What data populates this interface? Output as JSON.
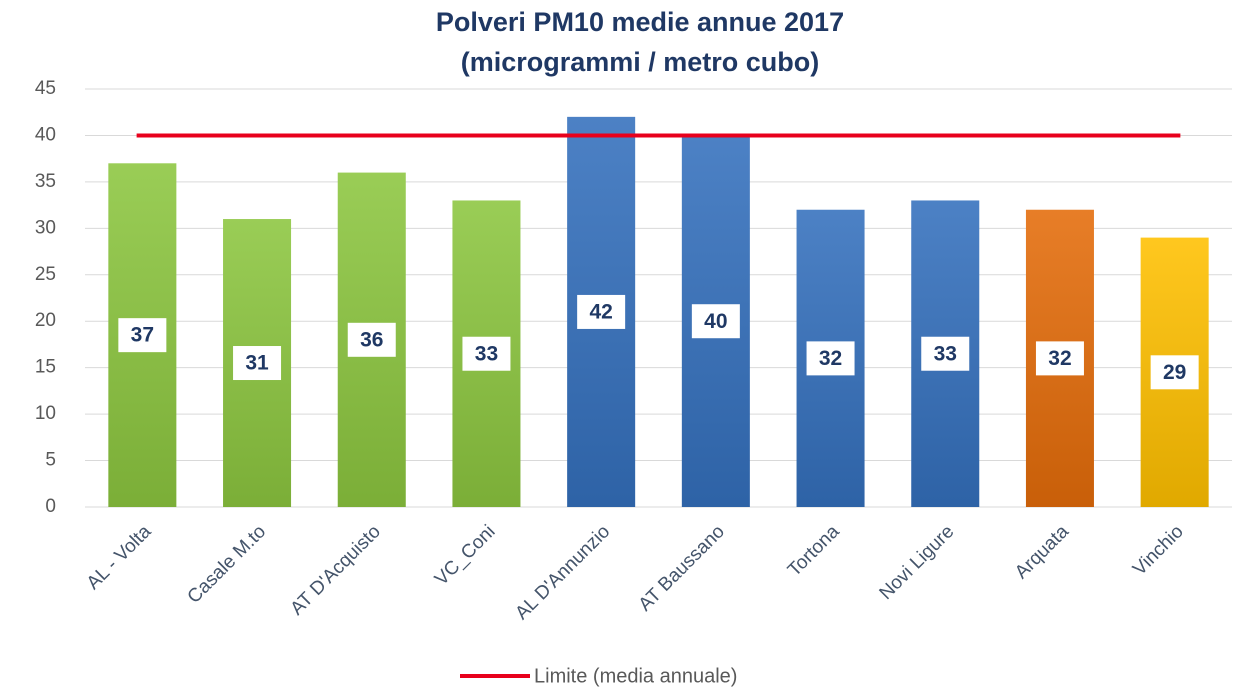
{
  "chart_data": {
    "type": "bar",
    "title": [
      "Polveri PM10 medie annue 2017",
      "(microgrammi / metro cubo)"
    ],
    "categories": [
      "AL - Volta",
      "Casale M.to",
      "AT D'Acquisto",
      "VC_Coni",
      "AL D'Annunzio",
      "AT Baussano",
      "Tortona",
      "Novi Ligure",
      "Arquata",
      "Vinchio"
    ],
    "values": [
      37,
      31,
      36,
      33,
      42,
      40,
      32,
      33,
      32,
      29
    ],
    "colors": [
      "#8cc63f",
      "#8cc63f",
      "#8cc63f",
      "#8cc63f",
      "#3470bd",
      "#3470bd",
      "#3470bd",
      "#3470bd",
      "#e46c0a",
      "#ffc000"
    ],
    "limit": {
      "name": "Limite (media annuale)",
      "value": 40,
      "color": "#e8001c"
    },
    "ylim": [
      0,
      45
    ],
    "yticks": [
      0,
      5,
      10,
      15,
      20,
      25,
      30,
      35,
      40,
      45
    ],
    "grid": true,
    "legend": "bottom"
  }
}
